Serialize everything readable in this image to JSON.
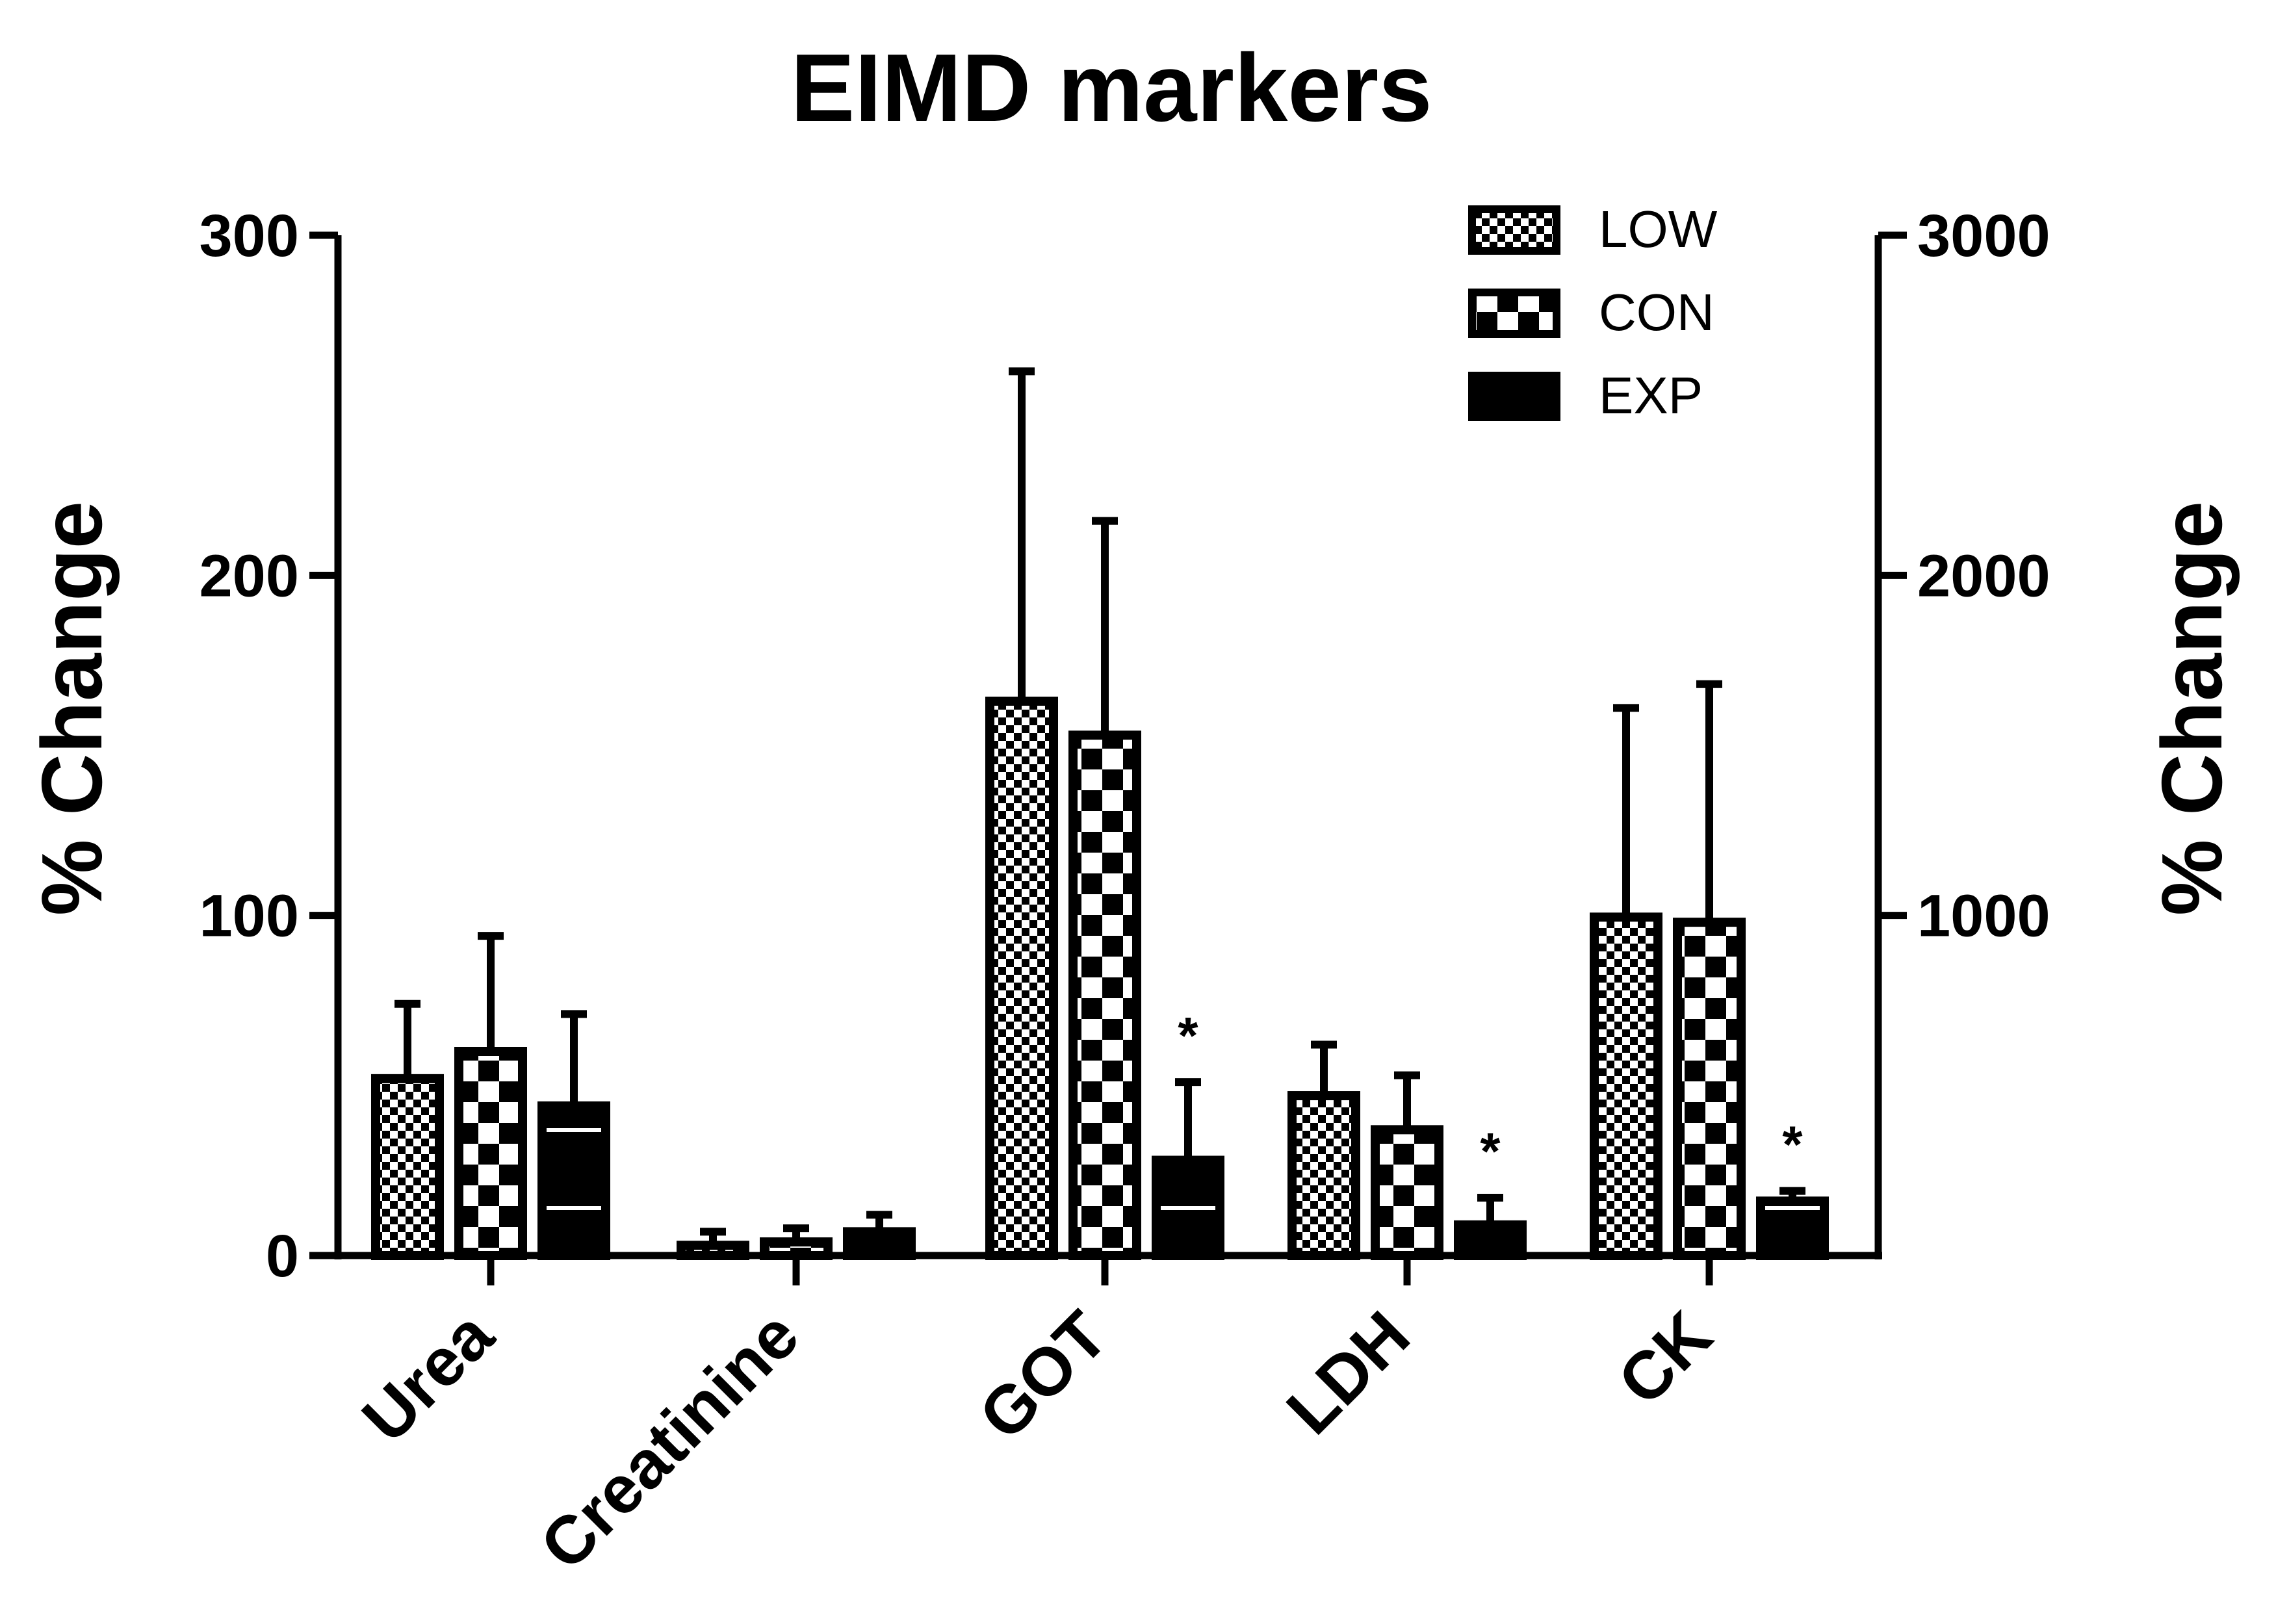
{
  "chart_data": {
    "type": "bar",
    "title": "EIMD markers",
    "ylabel_left": "% Change",
    "ylabel_right": "% Change",
    "left_axis": {
      "ylim": [
        0,
        300
      ],
      "ticks": [
        "0",
        "100",
        "200",
        "300"
      ]
    },
    "right_axis": {
      "ylim": [
        0,
        3000
      ],
      "ticks": [
        "1000",
        "2000",
        "3000"
      ],
      "applies_to": [
        "CK"
      ]
    },
    "categories": [
      "Urea",
      "Creatinine",
      "GOT",
      "LDH",
      "CK"
    ],
    "series": [
      {
        "name": "LOW",
        "pattern": "fine-checker",
        "values": [
          52,
          3,
          163,
          47,
          995
        ],
        "errors": [
          22,
          4,
          97,
          15,
          615
        ]
      },
      {
        "name": "CON",
        "pattern": "coarse-checker",
        "values": [
          60,
          4,
          153,
          37,
          980
        ],
        "errors": [
          34,
          4,
          63,
          16,
          700
        ]
      },
      {
        "name": "EXP",
        "pattern": "solid-with-lines",
        "values": [
          44,
          7,
          28,
          9,
          160
        ],
        "errors": [
          27,
          5,
          23,
          8,
          30
        ]
      }
    ],
    "annotations": [
      {
        "category": "GOT",
        "series": "EXP",
        "text": "*"
      },
      {
        "category": "LDH",
        "series": "EXP",
        "text": "*"
      },
      {
        "category": "CK",
        "series": "EXP",
        "text": "*"
      }
    ],
    "legend_position": "top-right",
    "grid": false,
    "colors": {
      "bar": "#000000",
      "fill_light": "#ffffff"
    }
  }
}
